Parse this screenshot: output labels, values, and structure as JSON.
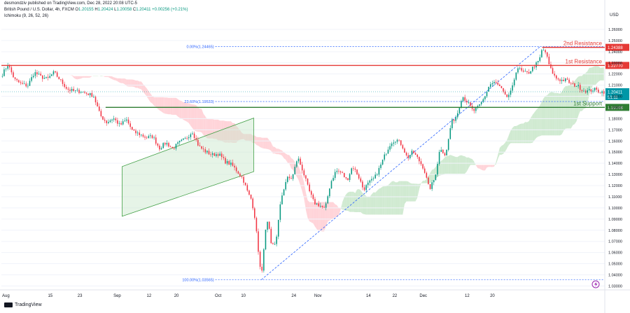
{
  "header": {
    "published": "desmondziv published on TradingView.com, Dec 28, 2022 20:08 UTC-5",
    "symbol_line_prefix": "British Pound / U.S. Dollar, 4h, FXCM",
    "o_label": "O",
    "o": "1.20155",
    "h_label": "H",
    "h": "1.20424",
    "l_label": "L",
    "l": "1.20058",
    "c_label": "C",
    "c": "1.20411",
    "change": "+0.00256 (+0.21%)",
    "indicator": "Ichimoku (9, 26, 52, 26)"
  },
  "footer": {
    "brand": "TradingView"
  },
  "colors": {
    "up": "#089981",
    "down": "#f23645",
    "resistance": "#e53935",
    "support": "#2e7d32",
    "cloud_bull": "#c8e6c9",
    "cloud_bear": "#ffcdd2",
    "fib": "#2962ff",
    "price": "#0097a7"
  },
  "chart_data": {
    "type": "candlestick",
    "currency_label": "USD",
    "ylim": [
      1.0265,
      1.2675
    ],
    "y_ticks": [
      "1.26000",
      "1.25000",
      "1.24000",
      "1.23000",
      "1.22000",
      "1.21000",
      "1.20000",
      "1.19000",
      "1.18000",
      "1.17000",
      "1.16000",
      "1.15000",
      "1.14000",
      "1.13000",
      "1.12000",
      "1.11000",
      "1.10000",
      "1.09000",
      "1.08000",
      "1.07000",
      "1.06000",
      "1.05000",
      "1.04000",
      "1.03000"
    ],
    "x_ticks": [
      "Aug",
      "15",
      "23",
      "Sep",
      "12",
      "20",
      "Oct",
      "10",
      "24",
      "Nov",
      "14",
      "22",
      "Dec",
      "12",
      "20"
    ],
    "levels": [
      {
        "name": "2nd Resistance",
        "price": "1.24388",
        "value": 1.24388,
        "color": "#e53935"
      },
      {
        "name": "1st Resistance",
        "price": "1.22770",
        "value": 1.2277,
        "color": "#e53935"
      },
      {
        "name": "1st Support",
        "price": "1.19008",
        "value": 1.19008,
        "color": "#2e7d32"
      }
    ],
    "current_price": {
      "value": 1.20411,
      "label": "1.20411",
      "countdown": "51:11"
    },
    "fibonacci": [
      {
        "label": "0.00%(1.24465)",
        "value": 1.24465
      },
      {
        "label": "23.60%(1.19533)",
        "value": 1.19533
      },
      {
        "label": "100.00%(1.03565)",
        "value": 1.03565
      }
    ],
    "channel": {
      "lower": [
        [
          1.0925,
          11
        ],
        [
          1.1325,
          23
        ]
      ],
      "upper": [
        [
          1.137,
          11
        ],
        [
          1.1805,
          23
        ]
      ]
    },
    "trendline": [
      [
        1.03565,
        0.15
      ],
      [
        1.2445,
        49.1
      ]
    ],
    "anchors": [
      [
        0.0,
        1.2185
      ],
      [
        0.6,
        1.2285
      ],
      [
        1.2,
        1.215
      ],
      [
        1.8,
        1.211
      ],
      [
        2.4,
        1.2095
      ],
      [
        3.0,
        1.2215
      ],
      [
        3.6,
        1.2175
      ],
      [
        4.2,
        1.2155
      ],
      [
        4.8,
        1.2215
      ],
      [
        5.4,
        1.214
      ],
      [
        6.0,
        1.2065
      ],
      [
        6.6,
        1.2045
      ],
      [
        7.2,
        1.2045
      ],
      [
        7.8,
        1.2025
      ],
      [
        8.4,
        1.2005
      ],
      [
        9.0,
        1.183
      ],
      [
        9.6,
        1.1765
      ],
      [
        10.2,
        1.1805
      ],
      [
        10.8,
        1.174
      ],
      [
        11.4,
        1.179
      ],
      [
        12.0,
        1.168
      ],
      [
        12.5,
        1.1665
      ],
      [
        13.2,
        1.163
      ],
      [
        13.8,
        1.164
      ],
      [
        14.4,
        1.1535
      ],
      [
        15.0,
        1.1585
      ],
      [
        15.6,
        1.153
      ],
      [
        16.2,
        1.1585
      ],
      [
        16.8,
        1.162
      ],
      [
        17.4,
        1.1685
      ],
      [
        18.0,
        1.155
      ],
      [
        18.6,
        1.1505
      ],
      [
        19.2,
        1.1475
      ],
      [
        19.8,
        1.1485
      ],
      [
        20.4,
        1.1415
      ],
      [
        21.0,
        1.1385
      ],
      [
        21.6,
        1.1315
      ],
      [
        22.0,
        1.1265
      ],
      [
        22.5,
        1.1125
      ],
      [
        22.8,
        1.1075
      ],
      [
        23.1,
        1.0915
      ],
      [
        23.4,
        1.0635
      ],
      [
        23.7,
        1.0358
      ],
      [
        24.0,
        1.0755
      ],
      [
        24.3,
        1.0885
      ],
      [
        24.6,
        1.0655
      ],
      [
        25.0,
        1.0685
      ],
      [
        25.5,
        1.1085
      ],
      [
        26.0,
        1.1265
      ],
      [
        26.5,
        1.1265
      ],
      [
        27.0,
        1.1455
      ],
      [
        27.5,
        1.1325
      ],
      [
        28.0,
        1.1165
      ],
      [
        28.5,
        1.1045
      ],
      [
        29.0,
        1.1025
      ],
      [
        29.5,
        1.0985
      ],
      [
        30.0,
        1.1225
      ],
      [
        30.5,
        1.1335
      ],
      [
        31.0,
        1.1315
      ],
      [
        31.5,
        1.1245
      ],
      [
        32.0,
        1.1375
      ],
      [
        32.5,
        1.1295
      ],
      [
        33.0,
        1.1165
      ],
      [
        33.5,
        1.1225
      ],
      [
        34.0,
        1.1265
      ],
      [
        34.5,
        1.1365
      ],
      [
        35.0,
        1.1485
      ],
      [
        35.5,
        1.1585
      ],
      [
        36.0,
        1.1615
      ],
      [
        36.5,
        1.1565
      ],
      [
        37.0,
        1.1445
      ],
      [
        37.5,
        1.1505
      ],
      [
        38.0,
        1.1435
      ],
      [
        38.5,
        1.1355
      ],
      [
        39.0,
        1.1165
      ],
      [
        39.5,
        1.1265
      ],
      [
        40.0,
        1.1545
      ],
      [
        40.5,
        1.1465
      ],
      [
        41.0,
        1.1765
      ],
      [
        41.5,
        1.1825
      ],
      [
        42.0,
        1.2005
      ],
      [
        42.5,
        1.1945
      ],
      [
        43.0,
        1.1865
      ],
      [
        43.5,
        1.1905
      ],
      [
        44.0,
        1.1985
      ],
      [
        44.5,
        1.2105
      ],
      [
        45.0,
        1.2125
      ],
      [
        45.5,
        1.2075
      ],
      [
        46.0,
        1.1985
      ],
      [
        46.5,
        1.2045
      ],
      [
        47.0,
        1.2265
      ],
      [
        47.5,
        1.2215
      ],
      [
        48.0,
        1.2205
      ],
      [
        48.5,
        1.2265
      ],
      [
        49.0,
        1.2315
      ],
      [
        49.3,
        1.2425
      ],
      [
        49.6,
        1.2395
      ],
      [
        50.0,
        1.2255
      ],
      [
        50.5,
        1.2165
      ],
      [
        51.0,
        1.2145
      ],
      [
        51.5,
        1.2145
      ],
      [
        52.0,
        1.2105
      ],
      [
        52.5,
        1.2095
      ],
      [
        53.0,
        1.2055
      ],
      [
        53.5,
        1.2045
      ],
      [
        54.0,
        1.2065
      ],
      [
        54.5,
        1.2041
      ]
    ]
  }
}
